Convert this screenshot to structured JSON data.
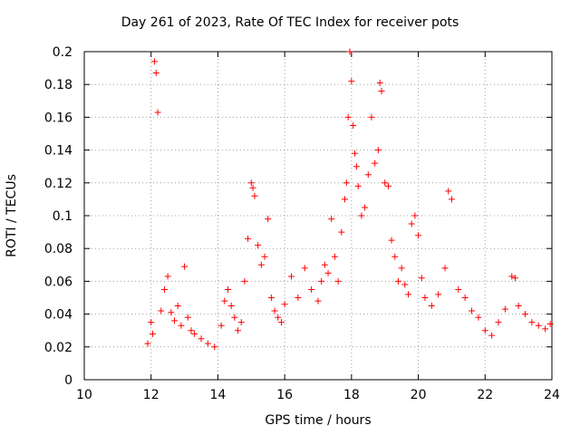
{
  "chart_data": {
    "type": "scatter",
    "title": "Day 261 of 2023, Rate Of TEC Index for receiver pots",
    "xlabel": "GPS time / hours",
    "ylabel": "ROTI / TECUs",
    "xlim": [
      10,
      24
    ],
    "ylim": [
      0,
      0.2
    ],
    "xticks": [
      "10",
      "12",
      "14",
      "16",
      "18",
      "20",
      "22",
      "24"
    ],
    "yticks": [
      "0",
      "0.02",
      "0.04",
      "0.06",
      "0.08",
      "0.1",
      "0.12",
      "0.14",
      "0.16",
      "0.18",
      "0.2"
    ],
    "grid": true,
    "marker": "+",
    "color": "#ff0000",
    "series": [
      {
        "x": [
          11.9,
          12.0,
          12.05,
          12.1,
          12.15,
          12.2,
          12.3,
          12.4,
          12.5,
          12.6,
          12.7,
          12.8,
          12.9,
          13.0,
          13.1,
          13.2,
          13.3,
          13.5,
          13.7,
          13.9,
          14.1,
          14.2,
          14.3,
          14.4,
          14.5,
          14.6,
          14.7,
          14.8,
          14.9,
          15.0,
          15.05,
          15.1,
          15.2,
          15.3,
          15.4,
          15.5,
          15.6,
          15.7,
          15.8,
          15.9,
          16.0,
          16.2,
          16.4,
          16.6,
          16.8,
          17.0,
          17.1,
          17.2,
          17.3,
          17.4,
          17.5,
          17.6,
          17.7,
          17.8,
          17.85,
          17.9,
          17.95,
          18.0,
          18.05,
          18.1,
          18.15,
          18.2,
          18.3,
          18.4,
          18.5,
          18.6,
          18.7,
          18.8,
          18.85,
          18.9,
          19.0,
          19.1,
          19.2,
          19.3,
          19.4,
          19.5,
          19.6,
          19.7,
          19.8,
          19.9,
          20.0,
          20.1,
          20.2,
          20.4,
          20.6,
          20.8,
          20.9,
          21.0,
          21.2,
          21.4,
          21.6,
          21.8,
          22.0,
          22.2,
          22.4,
          22.6,
          22.8,
          22.9,
          23.0,
          23.2,
          23.4,
          23.6,
          23.8,
          23.95
        ],
        "y": [
          0.022,
          0.035,
          0.028,
          0.194,
          0.187,
          0.163,
          0.042,
          0.055,
          0.063,
          0.041,
          0.036,
          0.045,
          0.033,
          0.069,
          0.038,
          0.03,
          0.028,
          0.025,
          0.022,
          0.02,
          0.033,
          0.048,
          0.055,
          0.045,
          0.038,
          0.03,
          0.035,
          0.06,
          0.086,
          0.12,
          0.117,
          0.112,
          0.082,
          0.07,
          0.075,
          0.098,
          0.05,
          0.042,
          0.038,
          0.035,
          0.046,
          0.063,
          0.05,
          0.068,
          0.055,
          0.048,
          0.06,
          0.07,
          0.065,
          0.098,
          0.075,
          0.06,
          0.09,
          0.11,
          0.12,
          0.16,
          0.2,
          0.182,
          0.155,
          0.138,
          0.13,
          0.118,
          0.1,
          0.105,
          0.125,
          0.16,
          0.132,
          0.14,
          0.181,
          0.176,
          0.12,
          0.118,
          0.085,
          0.075,
          0.06,
          0.068,
          0.058,
          0.052,
          0.095,
          0.1,
          0.088,
          0.062,
          0.05,
          0.045,
          0.052,
          0.068,
          0.115,
          0.11,
          0.055,
          0.05,
          0.042,
          0.038,
          0.03,
          0.027,
          0.035,
          0.043,
          0.063,
          0.062,
          0.045,
          0.04,
          0.035,
          0.033,
          0.031,
          0.034
        ]
      }
    ]
  }
}
